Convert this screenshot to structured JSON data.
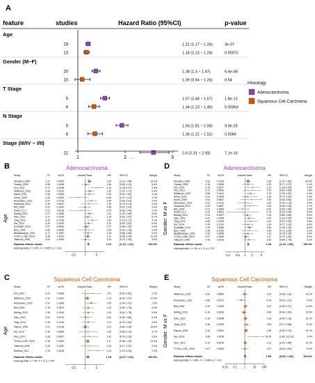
{
  "panelA": {
    "letter": "A",
    "headers": {
      "feature": "feature",
      "studies": "studies",
      "hr": "Hazard Ratio (95%CI)",
      "p": "p-value"
    },
    "groups": [
      {
        "label": "Age",
        "rows": [
          {
            "studies": "19",
            "ci": "1.22 (1.17 ~ 1.26)",
            "p": "3e-07",
            "hr": 1.22,
            "lo": 1.17,
            "hi": 1.26,
            "hist": "adeno"
          },
          {
            "studies": "13",
            "ci": "1.18 (1.13 ~ 1.24)",
            "p": "0.00072",
            "hr": 1.18,
            "lo": 1.13,
            "hi": 1.24,
            "hist": "squam"
          }
        ]
      },
      {
        "label": "Gender (M~F)",
        "rows": [
          {
            "studies": "20",
            "ci": "1.38 (1.3 ~ 1.47)",
            "p": "6.4e-08",
            "hr": 1.38,
            "lo": 1.3,
            "hi": 1.47,
            "hist": "adeno"
          },
          {
            "studies": "10",
            "ci": "1.09 (0.94 ~ 1.26)",
            "p": "0.54",
            "hr": 1.09,
            "lo": 0.94,
            "hi": 1.26,
            "hist": "squam"
          }
        ]
      },
      {
        "label": "T Stage",
        "rows": [
          {
            "studies": "5",
            "ci": "1.57 (1.48 ~ 1.67)",
            "p": "1.8e-13",
            "hr": 1.57,
            "lo": 1.48,
            "hi": 1.67,
            "hist": "adeno"
          },
          {
            "studies": "4",
            "ci": "1.34 (1.23 ~ 1.46)",
            "p": "0.00063",
            "hr": 1.34,
            "lo": 1.23,
            "hi": 1.46,
            "hist": "squam"
          }
        ]
      },
      {
        "label": "N Stage",
        "rows": [
          {
            "studies": "5",
            "ci": "1.93 (1.81 ~ 2.06)",
            "p": "9.9e-25",
            "hr": 1.93,
            "lo": 1.81,
            "hi": 2.06,
            "hist": "adeno"
          },
          {
            "studies": "6",
            "ci": "1.36 (1.21 ~ 1.52)",
            "p": "0.0066",
            "hr": 1.36,
            "lo": 1.21,
            "hi": 1.52,
            "hist": "squam"
          }
        ]
      },
      {
        "label": "Stage (III/IV ~ I/II)",
        "rows": [
          {
            "studies": "12",
            "ci": "2.6 (2.31 ~ 2.93)",
            "p": "7.1e-16",
            "hr": 2.6,
            "lo": 2.31,
            "hi": 2.93,
            "hist": "adeno"
          },
          {
            "studies": "6",
            "ci": "2.14 (1.8 ~ 2.55)",
            "p": "1.1e-05",
            "hr": 2.14,
            "lo": 1.8,
            "hi": 2.55,
            "hist": "squam"
          }
        ]
      }
    ],
    "axis_ticks": [
      "1",
      "2",
      "3"
    ],
    "legend": {
      "title": "Histology",
      "items": [
        {
          "key": "adeno",
          "label": "Adenocarcinoma",
          "color": "#8e44ad"
        },
        {
          "key": "squam",
          "label": "Squamous Cell Carcinoma",
          "color": "#d35400"
        }
      ]
    }
  },
  "panels": [
    {
      "letter": "B",
      "title": "Adenocarcinoma",
      "side": "Age",
      "color": "#8e44ad",
      "head": {
        "study": "Study",
        "te": "TE",
        "sete": "seTE",
        "hr": "Hazard Ratio",
        "hrci": "HR",
        "ci": "95%-CI",
        "weight": "Weight"
      },
      "studies": [
        {
          "name": "Shedden_2008",
          "te": "0.27",
          "se": "0.0670",
          "hrci": "1.30",
          "ci": "[1.14; 1.48]",
          "w": "19.4%",
          "hr": 1.3
        },
        {
          "name": "Tomida_2009",
          "te": "0.06",
          "se": "0.1458",
          "hrci": "1.06",
          "ci": "[0.80; 1.41]",
          "w": "5.4%",
          "hr": 1.06
        },
        {
          "name": "Zhu_2010",
          "te": "0.77",
          "se": "0.2298",
          "hrci": "2.16",
          "ci": "[1.39; 3.37]",
          "w": "2.6%",
          "hr": 2.16
        },
        {
          "name": "Wilkerson_2012",
          "te": "0.28",
          "se": "0.1310",
          "hrci": "1.32",
          "ci": "[1.02; 1.71]",
          "w": "6.4%",
          "hr": 1.32
        },
        {
          "name": "Staud_2013",
          "te": "0.26",
          "se": "0.1663",
          "hrci": "1.30",
          "ci": "[0.93; 1.81]",
          "w": "4.2%",
          "hr": 1.3
        },
        {
          "name": "Kuner_2009",
          "te": "-0.43",
          "se": "0.2993",
          "hrci": "0.65",
          "ci": "[0.37; 1.14]",
          "w": "1.7%",
          "hr": 0.65
        },
        {
          "name": "Rousseaux_2013",
          "te": "0.37",
          "se": "0.1716",
          "hrci": "1.45",
          "ci": "[1.04; 2.03]",
          "w": "4.2%",
          "hr": 1.45
        },
        {
          "name": "Okayama_2012",
          "te": "0.26",
          "se": "0.2607",
          "hrci": "1.29",
          "ci": "[0.78; 2.14]",
          "w": "2.0%",
          "hr": 1.29
        },
        {
          "name": "Bild_2006",
          "te": "-0.02",
          "se": "0.1942",
          "hrci": "0.98",
          "ci": "[0.67; 1.43]",
          "w": "3.4%",
          "hr": 0.98
        },
        {
          "name": "Girard_N_b",
          "te": "-0.22",
          "se": "0.4218",
          "hrci": "0.79",
          "ci": "[0.36; 1.49]",
          "w": "1.1%",
          "hr": 0.79
        },
        {
          "name": "Botling_2013",
          "te": "0.27",
          "se": "0.1265",
          "hrci": "1.31",
          "ci": "[1.02; 1.68]",
          "w": "6.5%",
          "hr": 1.31
        },
        {
          "name": "Sato_2013",
          "te": "0.17",
          "se": "0.1264",
          "hrci": "1.18",
          "ci": "[0.92; 1.51]",
          "w": "6.7%",
          "hr": 1.18
        },
        {
          "name": "Tang_2013",
          "te": "0.43",
          "se": "0.1734",
          "hrci": "1.54",
          "ci": "[1.10; 2.17]",
          "w": "4.1%",
          "hr": 1.54
        },
        {
          "name": "Der_2014",
          "te": "0.20",
          "se": "0.1029",
          "hrci": "1.22",
          "ci": "[0.92; 1.62]",
          "w": "5.3%",
          "hr": 1.22
        },
        {
          "name": "Schabath_2016",
          "te": "0.07",
          "se": "0.0892",
          "hrci": "1.07",
          "ci": "[0.86; 1.30]",
          "w": "9.4%",
          "hr": 1.07
        },
        {
          "name": "Beer_2002",
          "te": "0.05",
          "se": "0.2695",
          "hrci": "1.05",
          "ci": "[0.62; 1.78]",
          "w": "1.9%",
          "hr": 1.05
        },
        {
          "name": "Bhattacharjee_2001",
          "te": "0.17",
          "se": "0.1487",
          "hrci": "1.18",
          "ci": "[0.88; 1.58]",
          "w": "5.2%",
          "hr": 1.18
        },
        {
          "name": "TCGA_LUAD_2016",
          "te": "0.16",
          "se": "0.1003",
          "hrci": "1.17",
          "ci": "[0.96; 1.43]",
          "w": "11.2%",
          "hr": 1.17
        },
        {
          "name": "Takeuchi_2006",
          "te": "0.04",
          "se": "0.1696",
          "hrci": "1.04",
          "ci": "[0.75; 1.45]",
          "w": "4.4%",
          "hr": 1.04
        }
      ],
      "summary": {
        "label": "Random effects model",
        "hrci": "1.22",
        "ci": "[1.13; 1.31]",
        "w": "100.0%",
        "hr": 1.22,
        "lo": 1.13,
        "hi": 1.31
      },
      "het": "Heterogeneity: I² = 22%, τ² = 0.0057, p = 0.18",
      "ticks": [
        {
          "v": 0.5,
          "t": "0.5"
        },
        {
          "v": 1,
          "t": "1"
        },
        {
          "v": 2,
          "t": "2"
        }
      ],
      "xmin": 0.3,
      "xmax": 3.2
    },
    {
      "letter": "C",
      "title": "Squamous Cell Carcinoma",
      "side": "Age",
      "color": "#d35400",
      "head": {
        "study": "Study",
        "te": "TE",
        "sete": "seTE",
        "hr": "Hazard Ratio",
        "hrci": "HR",
        "ci": "95%-CI",
        "weight": "Weight"
      },
      "studies": [
        {
          "name": "Zhu_2010",
          "te": "0.41",
          "se": "0.3185",
          "hrci": "1.51",
          "ci": "[0.81; 2.80]",
          "w": "2.2%",
          "hr": 1.51
        },
        {
          "name": "Wilkerson_2012",
          "te": "0.12",
          "se": "0.1003",
          "hrci": "1.13",
          "ci": "[0.93; 1.37]",
          "w": "22.3%",
          "hr": 1.13
        },
        {
          "name": "Rousseaux_2013",
          "te": "0.37",
          "se": "0.1686",
          "hrci": "1.45",
          "ci": "[1.04; 2.02]",
          "w": "7.9%",
          "hr": 1.45
        },
        {
          "name": "Bild_2006",
          "te": "0.19",
          "se": "0.1873",
          "hrci": "1.21",
          "ci": "[0.84; 1.75]",
          "w": "6.4%",
          "hr": 1.21
        },
        {
          "name": "Botling_2013",
          "te": "0.18",
          "se": "0.1945",
          "hrci": "1.20",
          "ci": "[0.82; 1.75]",
          "w": "5.9%",
          "hr": 1.2
        },
        {
          "name": "Sato_2013",
          "te": "0.04",
          "se": "0.2075",
          "hrci": "1.04",
          "ci": "[0.69; 1.56]",
          "w": "5.2%",
          "hr": 1.04
        },
        {
          "name": "Tang_2013",
          "te": "0.19",
          "se": "0.2140",
          "hrci": "1.21",
          "ci": "[0.79; 1.84]",
          "w": "4.9%",
          "hr": 1.21
        },
        {
          "name": "Raponi_2006",
          "te": "0.01",
          "se": "0.1218",
          "hrci": "1.01",
          "ci": "[0.80; 1.29]",
          "w": "16.9%",
          "hr": 1.01
        },
        {
          "name": "Der_2014",
          "te": "0.18",
          "se": "0.2860",
          "hrci": "1.20",
          "ci": "[0.68; 2.10]",
          "w": "2.7%",
          "hr": 1.2
        },
        {
          "name": "Noro_2017",
          "te": "0.28",
          "se": "0.2607",
          "hrci": "1.32",
          "ci": "[0.79; 2.20]",
          "w": "3.3%",
          "hr": 1.32
        },
        {
          "name": "TCGA_LUSC_2016",
          "te": "0.16",
          "se": "0.1002",
          "hrci": "1.17",
          "ci": "[0.96; 1.43]",
          "w": "21.0%",
          "hr": 1.17
        },
        {
          "name": "Takeuchi_2006",
          "te": "0.29",
          "se": "0.4311",
          "hrci": "1.33",
          "ci": "[0.77; 2.31]",
          "w": "2.3%",
          "hr": 1.33
        },
        {
          "name": "Boelens_2011",
          "te": "0.76",
          "se": "0.3216",
          "hrci": "2.15",
          "ci": "[1.14; 4.03]",
          "w": "2.4%",
          "hr": 2.15
        }
      ],
      "summary": {
        "label": "Random effects model",
        "hrci": "1.18",
        "ci": "[1.07; 1.31]",
        "w": "100.0%",
        "hr": 1.18,
        "lo": 1.07,
        "hi": 1.31
      },
      "het": "Heterogeneity: I² = 0%, τ² = 0, p = 0.54",
      "ticks": [
        {
          "v": 0.5,
          "t": "0.5"
        },
        {
          "v": 1,
          "t": "1"
        },
        {
          "v": 2,
          "t": "2"
        }
      ],
      "xmin": 0.3,
      "xmax": 3.2
    },
    {
      "letter": "D",
      "title": "Adenocarcinoma",
      "side": "Gender: M vs F",
      "color": "#8e44ad",
      "head": {
        "study": "Study",
        "te": "TE",
        "sete": "seTE",
        "hr": "Hazard Ratio",
        "hrci": "HR",
        "ci": "95%-CI",
        "weight": "Weight"
      },
      "studies": [
        {
          "name": "Shedden_2008",
          "te": "0.31",
          "se": "0.1320",
          "hrci": "1.36",
          "ci": "[1.07; 1.80]",
          "w": "20.9%",
          "hr": 1.36
        },
        {
          "name": "Tomida_2009",
          "te": "0.30",
          "se": "0.2689",
          "hrci": "1.35",
          "ci": "[0.77; 2.37]",
          "w": "5.4%",
          "hr": 1.35
        },
        {
          "name": "Zhu_2010",
          "te": "0.75",
          "se": "0.3677",
          "hrci": "2.12",
          "ci": "[1.03; 4.35]",
          "w": "2.9%",
          "hr": 2.12
        },
        {
          "name": "Hou_2010",
          "te": "0.71",
          "se": "0.4509",
          "hrci": "2.04",
          "ci": "[0.84; 4.94]",
          "w": "1.8%",
          "hr": 2.04
        },
        {
          "name": "Wilkerson_2012",
          "te": "0.56",
          "se": "0.2441",
          "hrci": "1.75",
          "ci": "[1.09; 2.82]",
          "w": "5.4%",
          "hr": 1.75
        },
        {
          "name": "Staud_2013",
          "te": "0.23",
          "se": "0.3306",
          "hrci": "1.26",
          "ci": "[0.74; 3.50]",
          "w": "3.5%",
          "hr": 1.26
        },
        {
          "name": "Kuner_2009",
          "te": "0.64",
          "se": "0.5567",
          "hrci": "1.90",
          "ci": "[0.64; 5.55]",
          "w": "1.2%",
          "hr": 1.9
        },
        {
          "name": "Rousseaux_2013",
          "te": "0.02",
          "se": "0.3732",
          "hrci": "1.02",
          "ci": "[0.49; 2.13]",
          "w": "2.4%",
          "hr": 1.02
        },
        {
          "name": "Okayama_2012",
          "te": "0.53",
          "se": "0.3697",
          "hrci": "1.69",
          "ci": "[0.82; 3.49]",
          "w": "2.7%",
          "hr": 1.69
        },
        {
          "name": "Bild_2006",
          "te": "-0.21",
          "se": "0.3384",
          "hrci": "0.81",
          "ci": "[0.40; 1.58]",
          "w": "2.9%",
          "hr": 0.81
        },
        {
          "name": "Girard_N_b",
          "te": "-0.24",
          "se": "0.8411",
          "hrci": "0.79",
          "ci": "[0.16; 3.90]",
          "w": "0.5%",
          "hr": 0.79
        },
        {
          "name": "Botling_2013",
          "te": "0.23",
          "se": "0.2297",
          "hrci": "1.26",
          "ci": "[0.80; 1.98]",
          "w": "6.9%",
          "hr": 1.26
        },
        {
          "name": "Sato_2013",
          "te": "0.41",
          "se": "0.2489",
          "hrci": "1.50",
          "ci": "[1.02; 2.69]",
          "w": "5.6%",
          "hr": 1.5
        },
        {
          "name": "Tang_2013",
          "te": "0.60",
          "se": "0.3203",
          "hrci": "1.81",
          "ci": "[0.97; 3.40]",
          "w": "3.8%",
          "hr": 1.81
        },
        {
          "name": "Der_2014",
          "te": "0.29",
          "se": "0.2701",
          "hrci": "1.34",
          "ci": "[0.77; 2.33]",
          "w": "4.6%",
          "hr": 1.34
        },
        {
          "name": "Schabath_2016",
          "te": "0.44",
          "se": "0.1866",
          "hrci": "1.56",
          "ci": "[1.08; 2.25]",
          "w": "8.9%",
          "hr": 1.56
        },
        {
          "name": "Beer_2002",
          "te": "0.46",
          "se": "0.4109",
          "hrci": "1.59",
          "ci": "[0.71; 3.55]",
          "w": "2.2%",
          "hr": 1.59
        },
        {
          "name": "Bhattacharjee_2001",
          "te": "0.29",
          "se": "0.2895",
          "hrci": "1.33",
          "ci": "[0.75; 2.35]",
          "w": "4.4%",
          "hr": 1.33
        },
        {
          "name": "TCGA_LUAD_2016",
          "te": "0.07",
          "se": "0.1860",
          "hrci": "1.07",
          "ci": "[0.75; 1.52]",
          "w": "9.9%",
          "hr": 1.07
        },
        {
          "name": "Takeuchi_2006",
          "te": "0.42",
          "se": "0.3016",
          "hrci": "1.52",
          "ci": "[0.84; 2.75]",
          "w": "4.1%",
          "hr": 1.52
        }
      ],
      "summary": {
        "label": "Random effects model",
        "hrci": "1.38",
        "ci": "[1.23; 1.55]",
        "w": "100.0%",
        "hr": 1.38,
        "lo": 1.23,
        "hi": 1.55
      },
      "het": "Heterogeneity: I² = 0%, τ² = 0, p = 0.79",
      "ticks": [
        {
          "v": 0.2,
          "t": "0.2"
        },
        {
          "v": 0.5,
          "t": "0.5"
        },
        {
          "v": 1,
          "t": "1"
        },
        {
          "v": 2,
          "t": "2"
        },
        {
          "v": 5,
          "t": "5"
        }
      ],
      "xmin": 0.15,
      "xmax": 6.5
    },
    {
      "letter": "E",
      "title": "Squamous Cell Carcinoma",
      "side": "Gender: M vs F",
      "color": "#d35400",
      "head": {
        "study": "Study",
        "te": "TE",
        "sete": "seTE",
        "hr": "Hazard Ratio",
        "hrci": "HR",
        "ci": "95%-CI",
        "weight": "Weight"
      },
      "studies": [
        {
          "name": "Wilkerson_2010",
          "te": "0.00",
          "se": "0.3809",
          "hrci": "1.00",
          "ci": "[0.48; 2.12]",
          "w": "10.1%",
          "hr": 1.0
        },
        {
          "name": "Rousseaux_2013",
          "te": "-0.80",
          "se": "0.5371",
          "hrci": "0.44",
          "ci": "[0.15; 1.31]",
          "w": "5.9%",
          "hr": 0.44
        },
        {
          "name": "Bild_2006",
          "te": "0.20",
          "se": "0.3409",
          "hrci": "1.22",
          "ci": "[0.63; 2.37]",
          "w": "11.9%",
          "hr": 1.22
        },
        {
          "name": "Botling_2013",
          "te": "-0.19",
          "se": "0.3033",
          "hrci": "0.83",
          "ci": "[0.46; 1.50]",
          "w": "13.5%",
          "hr": 0.83
        },
        {
          "name": "Sato_2013",
          "te": "0.16",
          "se": "0.3098",
          "hrci": "1.18",
          "ci": "[0.64; 2.16]",
          "w": "13.1%",
          "hr": 1.18
        },
        {
          "name": "Tang_2013",
          "te": "0.46",
          "se": "0.4295",
          "hrci": "1.59",
          "ci": "[0.71; 3.58]",
          "w": "8.1%",
          "hr": 1.59
        },
        {
          "name": "Raponi_2006",
          "te": "0.32",
          "se": "0.2601",
          "hrci": "1.38",
          "ci": "[0.82; 2.31]",
          "w": "16.7%",
          "hr": 1.38
        },
        {
          "name": "Der_2014",
          "te": "2.66",
          "se": "1.0515",
          "hrci": "14.29",
          "ci": "[1.80; 112.31]",
          "w": "1.4%",
          "hr": 14.29
        },
        {
          "name": "Noro_2017",
          "te": "0.12",
          "se": "0.3276",
          "hrci": "1.12",
          "ci": "[0.75; 1.85]",
          "w": "13.1%",
          "hr": 1.12
        },
        {
          "name": "TCGA_LUSC_2016",
          "te": "0.07",
          "se": "0.4594",
          "hrci": "1.07",
          "ci": "[0.44; 2.64]",
          "w": "6.2%",
          "hr": 1.07
        }
      ],
      "summary": {
        "label": "Random effects model",
        "hrci": "1.09",
        "ci": "[0.82; 1.46]",
        "w": "100.0%",
        "hr": 1.09,
        "lo": 0.82,
        "hi": 1.46
      },
      "het": "Heterogeneity: I² = 38%, τ² = 0.0600, p = 0.10",
      "ticks": [
        {
          "v": 0.01,
          "t": "0.01"
        },
        {
          "v": 0.1,
          "t": "0.1"
        },
        {
          "v": 1,
          "t": "1"
        },
        {
          "v": 10,
          "t": "10"
        },
        {
          "v": 100,
          "t": "100"
        }
      ],
      "xmin": 0.01,
      "xmax": 100
    }
  ]
}
